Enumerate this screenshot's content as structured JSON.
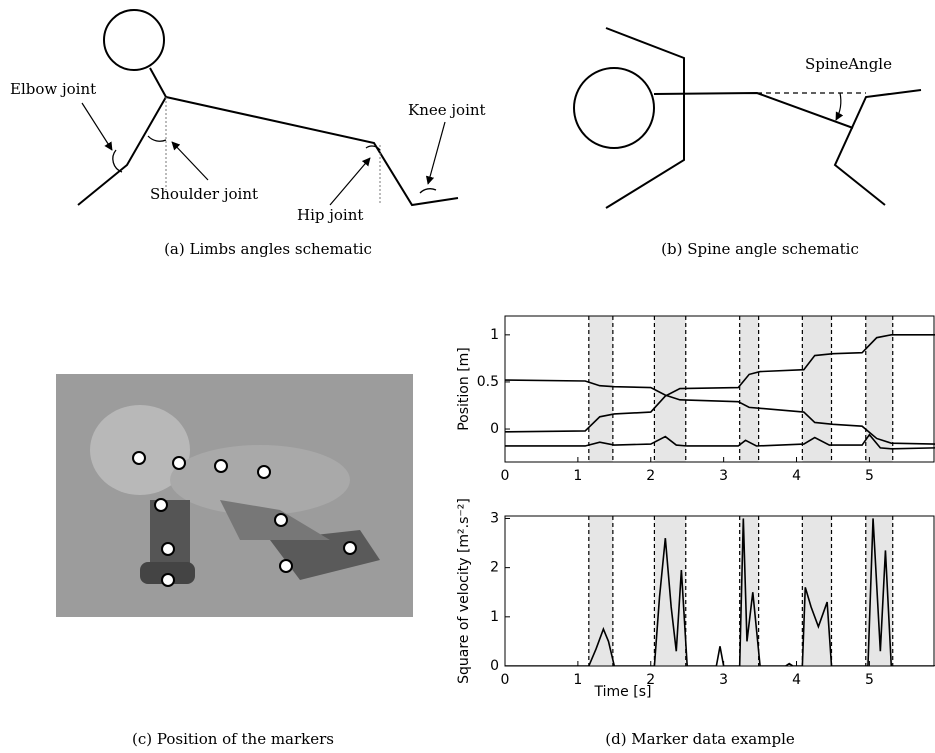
{
  "panels": {
    "a": {
      "caption": "(a) Limbs angles schematic",
      "elbow": "Elbow joint",
      "shoulder": "Shoulder joint",
      "hip": "Hip joint",
      "knee": "Knee joint"
    },
    "b": {
      "caption": "(b) Spine angle schematic",
      "angle": "SpineAngle"
    },
    "c": {
      "caption": "(c) Position of the markers"
    },
    "d": {
      "caption": "(d) Marker data example"
    }
  },
  "chart_data": [
    {
      "type": "line",
      "ylabel": "Position [m]",
      "xlim": [
        0,
        5.9
      ],
      "ylim": [
        -0.35,
        1.2
      ],
      "xticks": [
        0,
        1,
        2,
        3,
        4,
        5
      ],
      "yticks": [
        0,
        0.5,
        1
      ],
      "shaded": [
        [
          1.15,
          1.48
        ],
        [
          2.05,
          2.48
        ],
        [
          3.22,
          3.48
        ],
        [
          4.08,
          4.48
        ],
        [
          4.95,
          5.32
        ]
      ],
      "series": [
        {
          "color": "#000000",
          "x": [
            0,
            1.1,
            1.3,
            1.5,
            2.0,
            2.2,
            2.4,
            3.2,
            3.35,
            3.5,
            4.1,
            4.25,
            4.5,
            4.9,
            5.1,
            5.3,
            5.9
          ],
          "values": [
            0.52,
            0.51,
            0.46,
            0.45,
            0.44,
            0.36,
            0.31,
            0.29,
            0.23,
            0.22,
            0.18,
            0.07,
            0.05,
            0.03,
            -0.1,
            -0.15,
            -0.16
          ]
        },
        {
          "color": "#000000",
          "x": [
            0,
            1.1,
            1.3,
            1.5,
            2.0,
            2.2,
            2.4,
            3.2,
            3.35,
            3.5,
            4.1,
            4.25,
            4.5,
            4.9,
            5.1,
            5.3,
            5.9
          ],
          "values": [
            -0.03,
            -0.02,
            0.13,
            0.16,
            0.18,
            0.35,
            0.43,
            0.44,
            0.58,
            0.61,
            0.63,
            0.78,
            0.8,
            0.81,
            0.97,
            1.0,
            1.0
          ]
        },
        {
          "color": "#000000",
          "x": [
            0,
            1.1,
            1.3,
            1.5,
            2.0,
            2.2,
            2.35,
            2.5,
            3.2,
            3.3,
            3.45,
            4.1,
            4.25,
            4.45,
            4.9,
            5.0,
            5.15,
            5.3,
            5.9
          ],
          "values": [
            -0.18,
            -0.18,
            -0.14,
            -0.17,
            -0.16,
            -0.08,
            -0.17,
            -0.18,
            -0.18,
            -0.12,
            -0.18,
            -0.16,
            -0.09,
            -0.17,
            -0.17,
            -0.06,
            -0.2,
            -0.21,
            -0.2
          ]
        }
      ]
    },
    {
      "type": "line",
      "xlabel": "Time [s]",
      "ylabel": "Square of velocity [m².s⁻²]",
      "xlim": [
        0,
        5.9
      ],
      "ylim": [
        0,
        3.05
      ],
      "xticks": [
        0,
        1,
        2,
        3,
        4,
        5
      ],
      "yticks": [
        0,
        1,
        2,
        3
      ],
      "shaded": [
        [
          1.15,
          1.48
        ],
        [
          2.05,
          2.48
        ],
        [
          3.22,
          3.48
        ],
        [
          4.08,
          4.48
        ],
        [
          4.95,
          5.32
        ]
      ],
      "series": [
        {
          "color": "#000000",
          "x": [
            0,
            1.15,
            1.25,
            1.35,
            1.42,
            1.5,
            2.05,
            2.12,
            2.2,
            2.28,
            2.35,
            2.42,
            2.5,
            2.9,
            2.95,
            3.0,
            3.22,
            3.27,
            3.32,
            3.4,
            3.5,
            3.85,
            3.9,
            3.95,
            4.08,
            4.12,
            4.2,
            4.3,
            4.42,
            4.48,
            4.98,
            5.05,
            5.15,
            5.22,
            5.3,
            5.9
          ],
          "values": [
            0,
            0,
            0.35,
            0.75,
            0.5,
            0,
            0,
            1.4,
            2.6,
            1.2,
            0.3,
            1.95,
            0,
            0,
            0.4,
            0,
            0,
            3.0,
            0.5,
            1.5,
            0,
            0,
            0.05,
            0,
            0,
            1.6,
            1.2,
            0.8,
            1.3,
            0,
            0,
            3.0,
            0.3,
            2.35,
            0,
            0
          ]
        }
      ]
    }
  ]
}
